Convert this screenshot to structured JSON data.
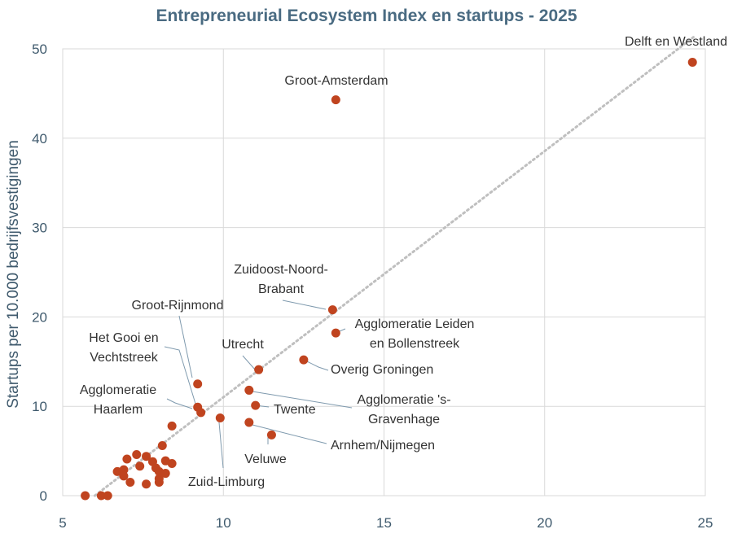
{
  "chart_data": {
    "type": "scatter",
    "title": "Entrepreneurial Ecosystem Index en startups - 2025",
    "xlabel": "",
    "ylabel": "Startups per 10.000 bedrijfsvestigingen",
    "xlim": [
      5,
      25
    ],
    "ylim": [
      0,
      50
    ],
    "xticks": [
      "5",
      "10",
      "15",
      "20",
      "25"
    ],
    "yticks": [
      "0",
      "10",
      "20",
      "30",
      "40",
      "50"
    ],
    "grid": true,
    "colors": {
      "point": "#c0441f",
      "trendline": "#bfbfbf",
      "title": "#4a6b82"
    },
    "trendline": {
      "style": "dotted",
      "from": [
        6.0,
        0.0
      ],
      "to": [
        24.7,
        51.5
      ]
    },
    "points": [
      {
        "x": 24.6,
        "y": 48.5
      },
      {
        "x": 13.5,
        "y": 44.3
      },
      {
        "x": 13.4,
        "y": 20.8
      },
      {
        "x": 13.5,
        "y": 18.2
      },
      {
        "x": 12.5,
        "y": 15.2
      },
      {
        "x": 11.1,
        "y": 14.1
      },
      {
        "x": 9.2,
        "y": 12.5
      },
      {
        "x": 9.2,
        "y": 9.9
      },
      {
        "x": 9.3,
        "y": 9.3
      },
      {
        "x": 9.9,
        "y": 8.7
      },
      {
        "x": 10.8,
        "y": 11.8
      },
      {
        "x": 11.0,
        "y": 10.1
      },
      {
        "x": 10.8,
        "y": 8.2
      },
      {
        "x": 11.5,
        "y": 6.8
      },
      {
        "x": 8.4,
        "y": 7.8
      },
      {
        "x": 8.1,
        "y": 5.6
      },
      {
        "x": 7.3,
        "y": 4.6
      },
      {
        "x": 7.6,
        "y": 4.4
      },
      {
        "x": 7.0,
        "y": 4.1
      },
      {
        "x": 7.8,
        "y": 3.8
      },
      {
        "x": 8.2,
        "y": 3.9
      },
      {
        "x": 8.4,
        "y": 3.6
      },
      {
        "x": 7.4,
        "y": 3.3
      },
      {
        "x": 7.9,
        "y": 3.1
      },
      {
        "x": 8.0,
        "y": 2.7
      },
      {
        "x": 6.7,
        "y": 2.7
      },
      {
        "x": 6.9,
        "y": 2.9
      },
      {
        "x": 8.2,
        "y": 2.5
      },
      {
        "x": 6.9,
        "y": 2.2
      },
      {
        "x": 8.0,
        "y": 1.9
      },
      {
        "x": 7.1,
        "y": 1.5
      },
      {
        "x": 8.0,
        "y": 1.5
      },
      {
        "x": 7.6,
        "y": 1.3
      },
      {
        "x": 5.7,
        "y": 0.0
      },
      {
        "x": 6.2,
        "y": 0.0
      },
      {
        "x": 6.4,
        "y": 0.0
      }
    ],
    "annotations": [
      {
        "lines": [
          "Delft en Westland"
        ]
      },
      {
        "lines": [
          "Groot-Amsterdam"
        ]
      },
      {
        "lines": [
          "Zuidoost-Noord-",
          "Brabant"
        ]
      },
      {
        "lines": [
          "Agglomeratie Leiden",
          "en Bollenstreek"
        ]
      },
      {
        "lines": [
          "Overig Groningen"
        ]
      },
      {
        "lines": [
          "Utrecht"
        ]
      },
      {
        "lines": [
          "Groot-Rijnmond"
        ]
      },
      {
        "lines": [
          "Het Gooi en",
          "Vechtstreek"
        ]
      },
      {
        "lines": [
          "Agglomeratie",
          "Haarlem"
        ]
      },
      {
        "lines": [
          "Agglomeratie 's-",
          "Gravenhage"
        ]
      },
      {
        "lines": [
          "Twente"
        ]
      },
      {
        "lines": [
          "Arnhem/Nijmegen"
        ]
      },
      {
        "lines": [
          "Veluwe"
        ]
      },
      {
        "lines": [
          "Zuid-Limburg"
        ]
      }
    ]
  }
}
